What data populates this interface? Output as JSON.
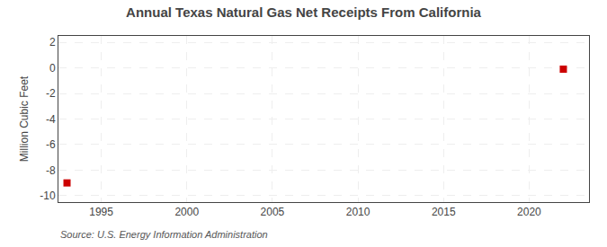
{
  "chart_data": {
    "type": "scatter",
    "title": "Annual Texas Natural Gas Net Receipts From California",
    "ylabel": "Million Cubic Feet",
    "annotations": [
      "Source: U.S. Energy Information Administration"
    ],
    "x": [
      1993,
      2022
    ],
    "values": [
      -9.0,
      -0.1
    ],
    "color": "#cc0000",
    "marker": "square",
    "xlim": [
      1992.5,
      2023.5
    ],
    "xticks": [
      1995,
      2000,
      2005,
      2010,
      2015,
      2020
    ],
    "ylim": [
      -10.5,
      2.5
    ],
    "yticks": [
      2,
      0,
      -2,
      -4,
      -6,
      -8,
      -10
    ],
    "grid": true
  }
}
